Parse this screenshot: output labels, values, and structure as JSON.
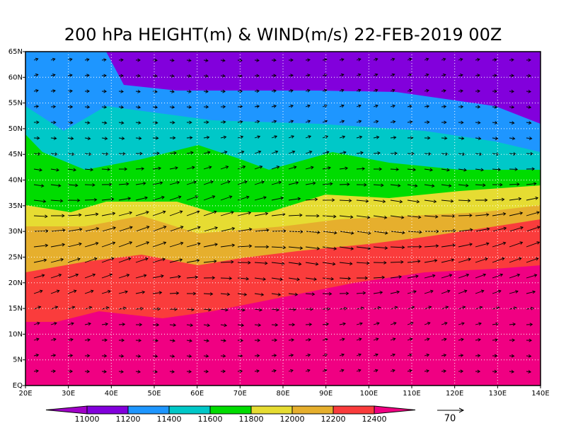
{
  "title": "200 hPa HEIGHT(m) & WIND(m/s) 22-FEB-2019 00Z",
  "map": {
    "lat_labels": [
      "EQ",
      "5N",
      "10N",
      "15N",
      "20N",
      "25N",
      "30N",
      "35N",
      "40N",
      "45N",
      "50N",
      "55N",
      "60N",
      "65N"
    ],
    "lon_labels": [
      "20E",
      "30E",
      "40E",
      "50E",
      "60E",
      "70E",
      "80E",
      "90E",
      "100E",
      "110E",
      "120E",
      "130E",
      "140E"
    ]
  },
  "colorbar": {
    "labels": [
      "11000",
      "11200",
      "11400",
      "11600",
      "11800",
      "12000",
      "12200",
      "12400"
    ],
    "colors": [
      "#a000c8",
      "#8200dc",
      "#1e96ff",
      "#00c8c8",
      "#00dc00",
      "#e6dc32",
      "#e6af2d",
      "#fa3c3c",
      "#f00082"
    ]
  },
  "reference_vector": {
    "label": "70"
  }
}
